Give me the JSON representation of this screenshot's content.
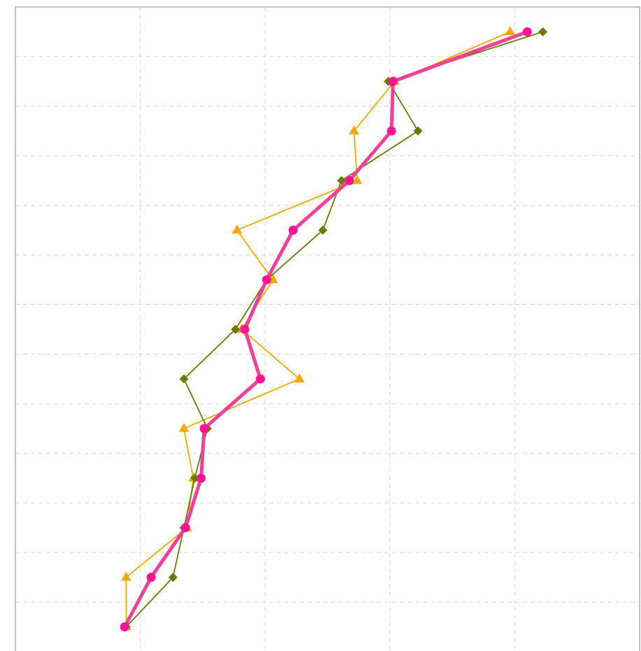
{
  "chart_data": {
    "type": "line",
    "title": "",
    "xlabel": "",
    "ylabel": "",
    "xlim": [
      -1.0,
      19.0
    ],
    "ylim": [
      -0.5,
      12.5
    ],
    "x_grid": [
      3,
      7,
      11,
      15
    ],
    "y_grid": [
      0.5,
      1.5,
      2.5,
      3.5,
      4.5,
      5.5,
      6.5,
      7.5,
      8.5,
      9.5,
      10.5,
      11.5
    ],
    "grid": true,
    "legend": "none",
    "series": [
      {
        "color": "#f5a800",
        "marker": "triangle",
        "points": [
          [
            2.55,
            0.0
          ],
          [
            2.55,
            1.0
          ],
          [
            4.5,
            2.0
          ],
          [
            4.7,
            3.0
          ],
          [
            4.4,
            4.0
          ],
          [
            8.1,
            5.0
          ],
          [
            6.25,
            6.0
          ],
          [
            7.25,
            7.0
          ],
          [
            6.1,
            8.0
          ],
          [
            9.95,
            9.0
          ],
          [
            9.85,
            10.0
          ],
          [
            11.15,
            11.0
          ],
          [
            14.85,
            12.0
          ]
        ]
      },
      {
        "color": "#6b7b00",
        "marker": "diamond",
        "points": [
          [
            2.55,
            0.0
          ],
          [
            4.05,
            1.0
          ],
          [
            4.4,
            2.0
          ],
          [
            4.75,
            3.0
          ],
          [
            5.15,
            4.0
          ],
          [
            4.4,
            5.0
          ],
          [
            6.05,
            6.0
          ],
          [
            7.05,
            7.0
          ],
          [
            8.85,
            8.0
          ],
          [
            9.45,
            9.0
          ],
          [
            11.9,
            10.0
          ],
          [
            10.95,
            11.0
          ],
          [
            15.9,
            12.0
          ]
        ]
      },
      {
        "color": "#ff1493",
        "marker": "circle",
        "points": [
          [
            2.5,
            0.0
          ],
          [
            3.35,
            1.0
          ],
          [
            4.45,
            2.0
          ],
          [
            4.95,
            3.0
          ],
          [
            5.05,
            4.0
          ],
          [
            6.85,
            5.0
          ],
          [
            6.35,
            6.0
          ],
          [
            7.05,
            7.0
          ],
          [
            7.9,
            8.0
          ],
          [
            9.7,
            9.0
          ],
          [
            11.05,
            10.0
          ],
          [
            11.1,
            11.0
          ],
          [
            15.4,
            12.0
          ]
        ]
      }
    ]
  }
}
